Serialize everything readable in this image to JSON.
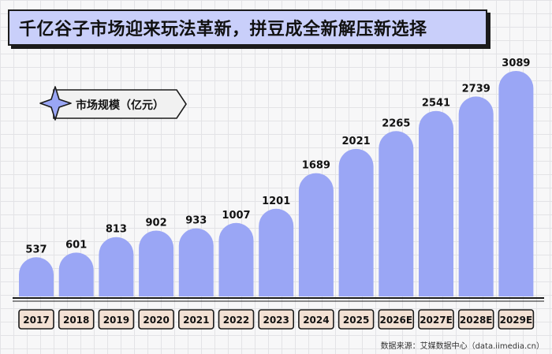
{
  "title": "千亿谷子市场迎来玩法革新，拼豆成全新解压新选择",
  "source": "数据来源：艾媒数据中心（data.iimedia.cn）",
  "colors": {
    "bar": "#9aa6f5",
    "title_bg": "#c9cffa",
    "outline": "#1b1b1b",
    "grid": "#e3e3e6",
    "badge_fill": "#f3e1d4",
    "tag_fill": "#f1f1f1",
    "star_fill": "#9aa6f5"
  },
  "chart_data": {
    "type": "bar",
    "series_label": "市场规模（亿元）",
    "categories": [
      "2017",
      "2018",
      "2019",
      "2020",
      "2021",
      "2022",
      "2023",
      "2024",
      "2025",
      "2026E",
      "2027E",
      "2028E",
      "2029E"
    ],
    "values": [
      537,
      601,
      813,
      902,
      933,
      1007,
      1201,
      1689,
      2021,
      2265,
      2541,
      2739,
      3089
    ],
    "ylim": [
      0,
      3089
    ],
    "grid": true
  }
}
